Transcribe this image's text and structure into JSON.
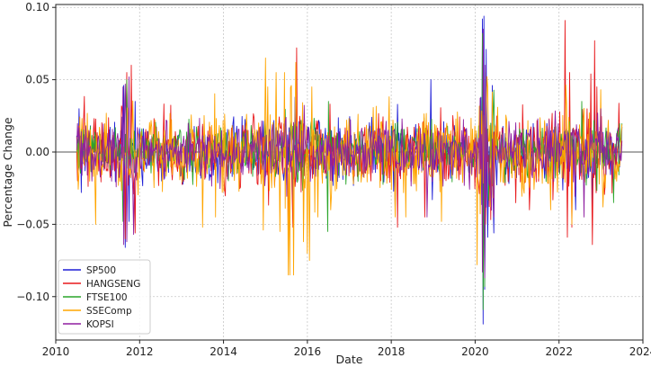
{
  "chart_data": {
    "type": "line",
    "xlabel": "Date",
    "ylabel": "Percentage Change",
    "xlim": [
      2010.0,
      2024.0
    ],
    "ylim": [
      -0.13,
      0.102
    ],
    "x_ticks": [
      2010,
      2012,
      2014,
      2016,
      2018,
      2020,
      2022,
      2024
    ],
    "x_tick_labels": [
      "2010",
      "2012",
      "2014",
      "2016",
      "2018",
      "2020",
      "2022",
      "2024"
    ],
    "y_ticks": [
      -0.1,
      -0.05,
      0.0,
      0.05,
      0.1
    ],
    "y_tick_labels": [
      "−0.10",
      "−0.05",
      "0.00",
      "0.05",
      "0.10"
    ],
    "grid": true,
    "zero_line": true,
    "legend_position": "lower-left",
    "date_range": [
      "2010-07",
      "2023-06"
    ],
    "series": [
      {
        "name": "SP500",
        "color": "#1f1fd6",
        "base_sd": 0.01,
        "spikes": [
          [
            2010.55,
            0.03
          ],
          [
            2010.6,
            -0.028
          ],
          [
            2011.62,
            0.046
          ],
          [
            2011.66,
            -0.066
          ],
          [
            2011.7,
            0.045
          ],
          [
            2011.75,
            -0.048
          ],
          [
            2011.9,
            0.035
          ],
          [
            2015.65,
            -0.039
          ],
          [
            2015.7,
            0.038
          ],
          [
            2018.1,
            -0.041
          ],
          [
            2018.15,
            0.033
          ],
          [
            2018.95,
            0.05
          ],
          [
            2018.98,
            -0.033
          ],
          [
            2020.17,
            0.092
          ],
          [
            2020.19,
            -0.119
          ],
          [
            2020.21,
            0.094
          ],
          [
            2020.23,
            -0.095
          ],
          [
            2020.26,
            0.071
          ],
          [
            2020.3,
            -0.059
          ],
          [
            2020.45,
            -0.056
          ],
          [
            2022.4,
            -0.04
          ],
          [
            2022.85,
            0.055
          ],
          [
            2022.8,
            -0.043
          ]
        ]
      },
      {
        "name": "HANGSENG",
        "color": "#e8191c",
        "base_sd": 0.012,
        "spikes": [
          [
            2011.65,
            -0.06
          ],
          [
            2011.7,
            0.055
          ],
          [
            2011.8,
            0.06
          ],
          [
            2011.9,
            -0.056
          ],
          [
            2015.55,
            -0.061
          ],
          [
            2015.65,
            -0.052
          ],
          [
            2015.75,
            0.072
          ],
          [
            2018.15,
            -0.052
          ],
          [
            2018.8,
            -0.045
          ],
          [
            2020.2,
            0.053
          ],
          [
            2020.25,
            -0.05
          ],
          [
            2021.3,
            -0.04
          ],
          [
            2022.15,
            0.091
          ],
          [
            2022.2,
            -0.059
          ],
          [
            2022.25,
            0.055
          ],
          [
            2022.3,
            -0.052
          ],
          [
            2022.75,
            0.054
          ],
          [
            2022.8,
            -0.064
          ],
          [
            2022.85,
            0.077
          ],
          [
            2022.9,
            0.045
          ]
        ]
      },
      {
        "name": "FTSE100",
        "color": "#2aa52a",
        "base_sd": 0.009,
        "spikes": [
          [
            2011.6,
            -0.048
          ],
          [
            2011.7,
            0.05
          ],
          [
            2016.48,
            -0.055
          ],
          [
            2016.5,
            0.035
          ],
          [
            2020.18,
            0.082
          ],
          [
            2020.2,
            -0.109
          ],
          [
            2020.22,
            -0.093
          ],
          [
            2020.24,
            0.055
          ],
          [
            2022.55,
            0.035
          ],
          [
            2023.3,
            -0.035
          ]
        ]
      },
      {
        "name": "SSEComp",
        "color": "#ffa500",
        "base_sd": 0.013,
        "spikes": [
          [
            2010.95,
            -0.05
          ],
          [
            2013.5,
            -0.052
          ],
          [
            2013.8,
            -0.045
          ],
          [
            2014.95,
            -0.054
          ],
          [
            2015.0,
            0.065
          ],
          [
            2015.05,
            0.045
          ],
          [
            2015.25,
            0.055
          ],
          [
            2015.35,
            -0.055
          ],
          [
            2015.45,
            0.055
          ],
          [
            2015.55,
            -0.085
          ],
          [
            2015.58,
            -0.085
          ],
          [
            2015.62,
            0.046
          ],
          [
            2015.68,
            -0.085
          ],
          [
            2015.72,
            0.062
          ],
          [
            2015.9,
            -0.062
          ],
          [
            2016.0,
            -0.07
          ],
          [
            2016.05,
            -0.075
          ],
          [
            2016.1,
            0.045
          ],
          [
            2016.25,
            -0.045
          ],
          [
            2016.55,
            -0.04
          ],
          [
            2018.1,
            -0.045
          ],
          [
            2018.35,
            -0.045
          ],
          [
            2019.2,
            -0.048
          ],
          [
            2020.05,
            -0.078
          ],
          [
            2020.3,
            0.045
          ],
          [
            2021.8,
            -0.04
          ],
          [
            2022.3,
            -0.05
          ],
          [
            2023.05,
            -0.038
          ]
        ]
      },
      {
        "name": "KOPSI",
        "color": "#8f1fa0",
        "base_sd": 0.01,
        "spikes": [
          [
            2011.6,
            0.045
          ],
          [
            2011.62,
            -0.064
          ],
          [
            2011.65,
            0.047
          ],
          [
            2011.7,
            -0.062
          ],
          [
            2011.75,
            0.052
          ],
          [
            2011.85,
            -0.057
          ],
          [
            2018.85,
            -0.045
          ],
          [
            2020.18,
            -0.083
          ],
          [
            2020.2,
            0.085
          ],
          [
            2020.23,
            -0.087
          ],
          [
            2020.25,
            0.06
          ],
          [
            2020.45,
            -0.045
          ],
          [
            2022.6,
            -0.045
          ],
          [
            2023.0,
            0.03
          ]
        ]
      }
    ]
  }
}
